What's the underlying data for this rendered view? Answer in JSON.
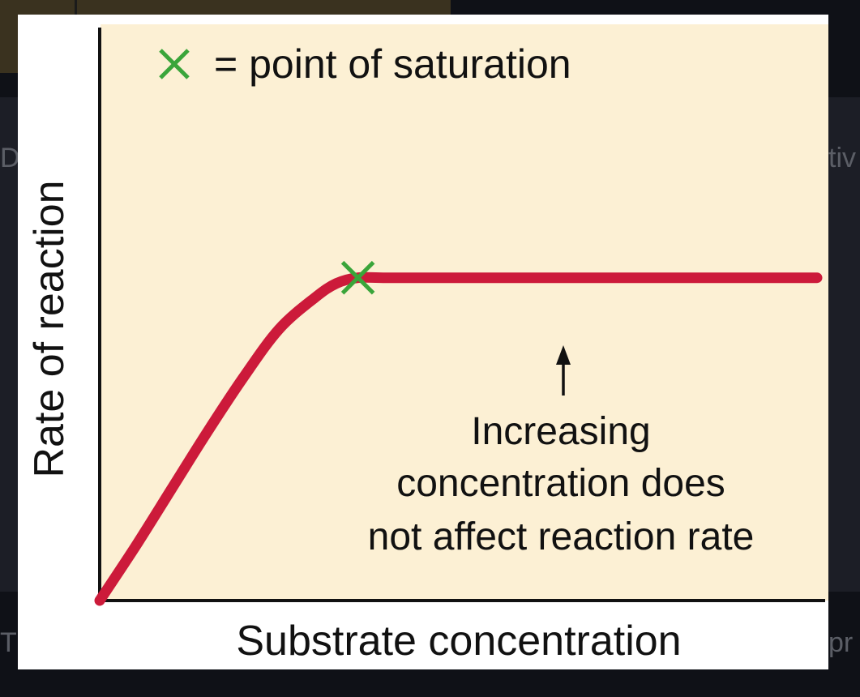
{
  "background": {
    "text_left_top": "D",
    "text_right_top": "tiv",
    "text_left_bottom": "T",
    "text_right_bottom": "pr"
  },
  "chart_data": {
    "type": "line",
    "title": "",
    "xlabel": "Substrate concentration",
    "ylabel": "Rate of reaction",
    "xlim": [
      0,
      10
    ],
    "ylim": [
      0,
      10
    ],
    "series": [
      {
        "color": "#cc1a3a",
        "x": [
          0,
          0.5,
          1.0,
          1.5,
          2.0,
          2.5,
          3.0,
          3.3,
          3.6,
          4.0,
          5.0,
          6.0,
          7.0,
          8.0,
          9.0,
          10.0
        ],
        "y": [
          0,
          0.95,
          1.95,
          2.95,
          3.9,
          4.75,
          5.3,
          5.55,
          5.65,
          5.65,
          5.65,
          5.65,
          5.65,
          5.65,
          5.65,
          5.65
        ]
      }
    ],
    "saturation_point": {
      "x": 3.6,
      "y": 5.65,
      "color": "#3aa53a"
    },
    "legend": {
      "marker": "✕",
      "text": "= point of saturation"
    },
    "annotation": {
      "lines": [
        "Increasing",
        "concentration does",
        "not affect reaction rate"
      ]
    },
    "plot_background": "#fcf0d4"
  }
}
